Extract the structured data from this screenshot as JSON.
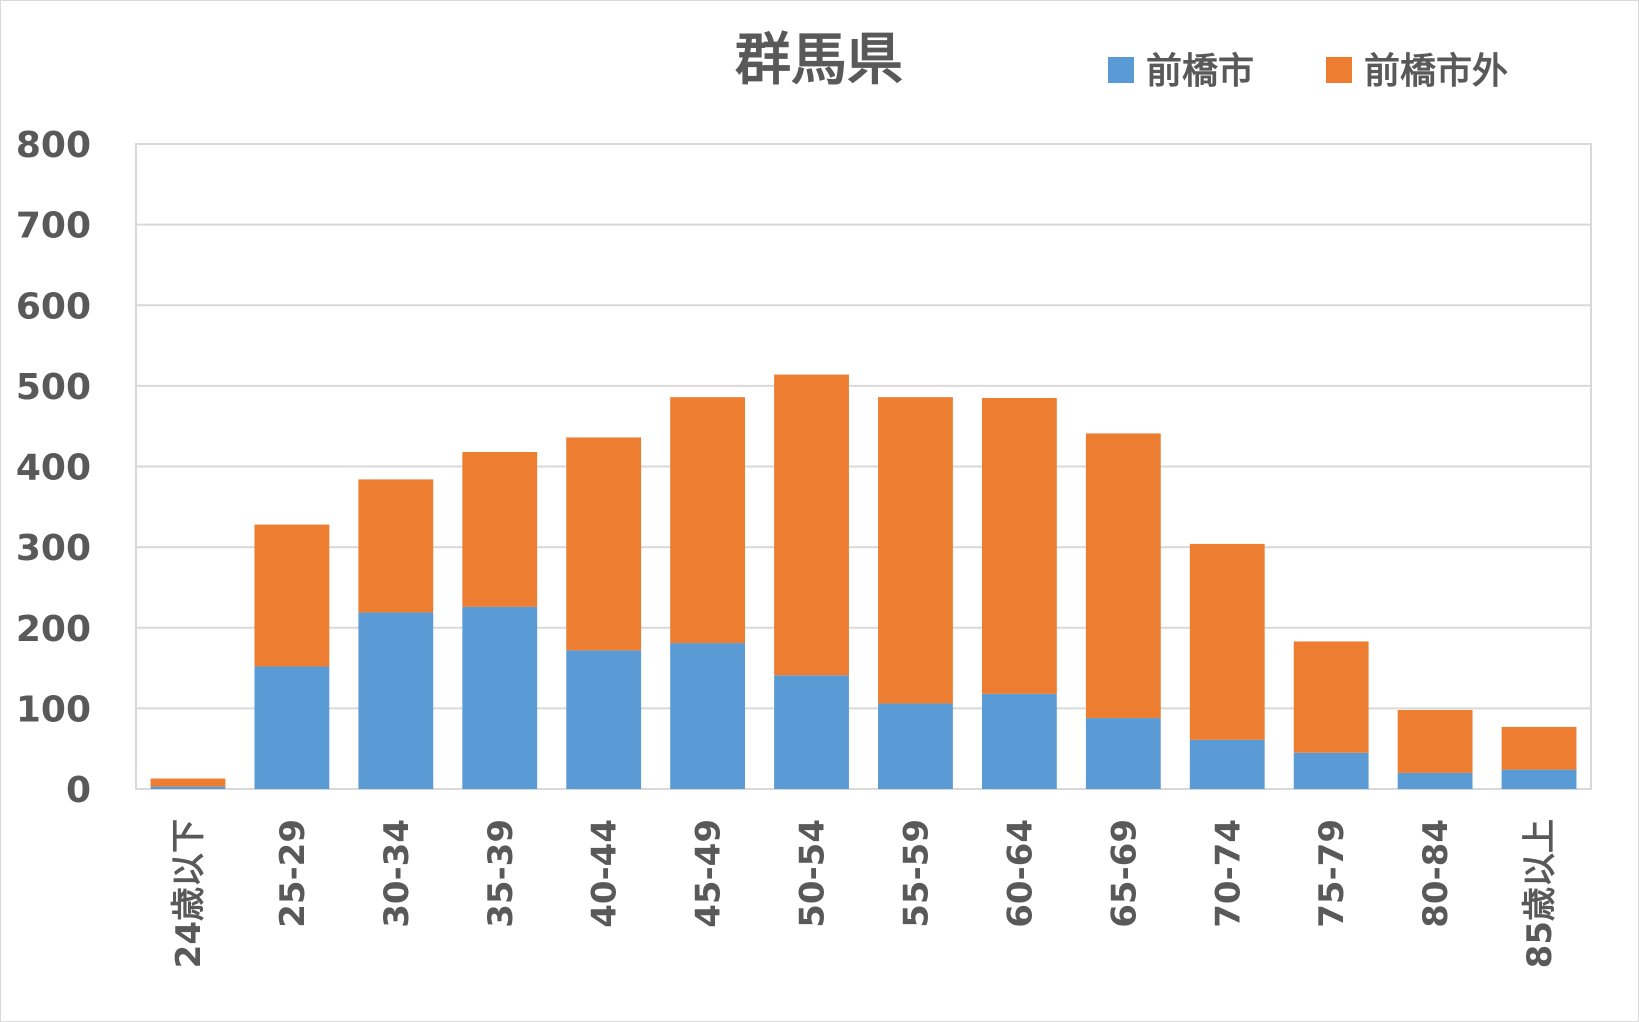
{
  "chart_data": {
    "type": "bar",
    "stacked": true,
    "title": "群馬県",
    "categories": [
      "24歳以下",
      "25-29",
      "30-34",
      "35-39",
      "40-44",
      "45-49",
      "50-54",
      "55-59",
      "60-64",
      "65-69",
      "70-74",
      "75-79",
      "80-84",
      "85歳以上"
    ],
    "series": [
      {
        "name": "前橋市",
        "color": "#5b9bd5",
        "values": [
          3,
          152,
          219,
          226,
          172,
          181,
          141,
          106,
          118,
          88,
          61,
          45,
          20,
          24
        ]
      },
      {
        "name": "前橋市外",
        "color": "#ed7d31",
        "values": [
          10,
          176,
          165,
          192,
          264,
          305,
          373,
          380,
          367,
          353,
          243,
          138,
          78,
          53
        ]
      }
    ],
    "ylim": [
      0,
      800
    ],
    "yticks": [
      0,
      100,
      200,
      300,
      400,
      500,
      600,
      700,
      800
    ],
    "grid": true,
    "legend_position": "top-right",
    "xlabel": "",
    "ylabel": ""
  }
}
